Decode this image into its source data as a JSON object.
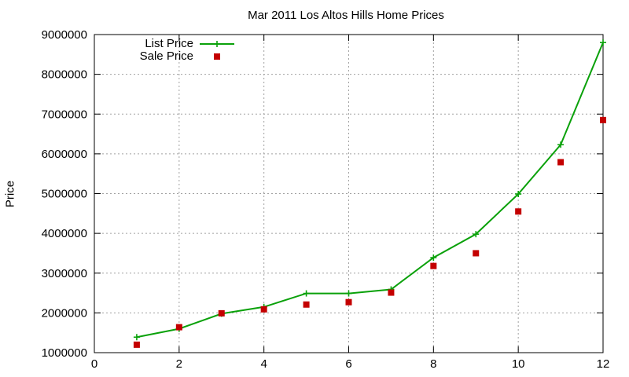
{
  "chart_data": {
    "type": "line",
    "title": "Mar 2011 Los Altos Hills Home Prices",
    "xlabel": "",
    "ylabel": "Price",
    "xlim": [
      0,
      12
    ],
    "ylim": [
      1000000,
      9000000
    ],
    "x_ticks": [
      0,
      2,
      4,
      6,
      8,
      10,
      12
    ],
    "y_ticks": [
      1000000,
      2000000,
      3000000,
      4000000,
      5000000,
      6000000,
      7000000,
      8000000,
      9000000
    ],
    "grid": true,
    "legend_position": "top-left",
    "series": [
      {
        "name": "List Price",
        "style": "line-with-plus-markers",
        "color": "#0aa10a",
        "x": [
          1,
          2,
          3,
          4,
          5,
          6,
          7,
          8,
          9,
          10,
          11,
          12
        ],
        "y": [
          1390000,
          1600000,
          1980000,
          2150000,
          2490000,
          2490000,
          2590000,
          3390000,
          3980000,
          4990000,
          6230000,
          8800000
        ]
      },
      {
        "name": "Sale Price",
        "style": "square-markers",
        "color": "#c40000",
        "x": [
          1,
          2,
          3,
          4,
          5,
          6,
          7,
          8,
          9,
          10,
          11,
          12
        ],
        "y": [
          1200000,
          1640000,
          1990000,
          2090000,
          2210000,
          2270000,
          2510000,
          3180000,
          3500000,
          4550000,
          5790000,
          6850000
        ]
      }
    ]
  }
}
